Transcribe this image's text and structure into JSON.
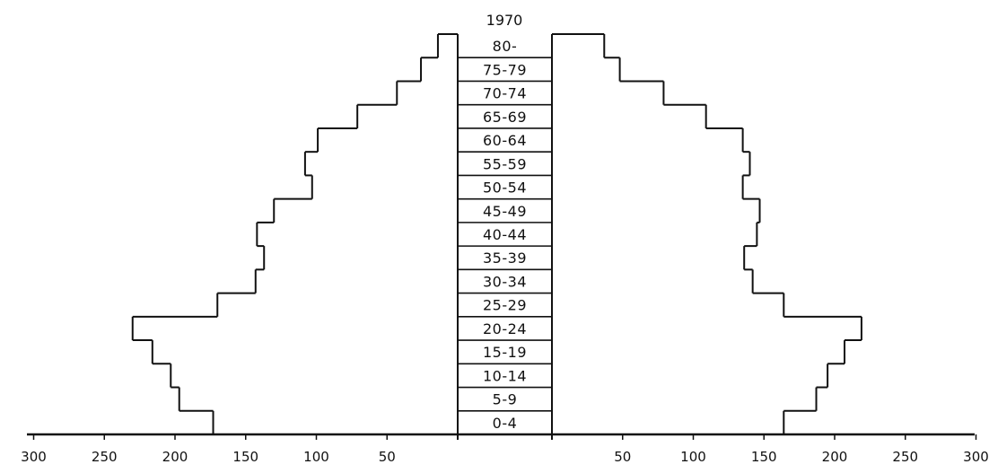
{
  "chart_data": {
    "type": "bar",
    "title": "1970",
    "categories": [
      "0-4",
      "5-9",
      "10-14",
      "15-19",
      "20-24",
      "25-29",
      "30-34",
      "35-39",
      "40-44",
      "45-49",
      "50-54",
      "55-59",
      "60-64",
      "65-69",
      "70-74",
      "75-79",
      "80-"
    ],
    "category_labels": [
      "0-4",
      "5-9",
      "10-14",
      "15-19",
      "20-24",
      "25-29",
      "30-34",
      "35-39",
      "40-44",
      "45-49",
      "50-54",
      "55-59",
      "60-64",
      "65-69",
      "70-74",
      "75-79",
      "80-"
    ],
    "series": [
      {
        "values": [
          173,
          197,
          203,
          216,
          230,
          170,
          143,
          137,
          142,
          130,
          103,
          108,
          99,
          71,
          43,
          26,
          14
        ]
      },
      {
        "values": [
          164,
          187,
          195,
          207,
          219,
          164,
          142,
          136,
          145,
          147,
          135,
          140,
          135,
          109,
          79,
          48,
          37
        ]
      }
    ],
    "xlim": [
      0,
      300
    ],
    "left_ticks": [
      "300",
      "250",
      "200",
      "150",
      "100",
      "50"
    ],
    "right_ticks": [
      "50",
      "100",
      "150",
      "200",
      "250",
      "300"
    ],
    "stroke_color": "#111111"
  }
}
